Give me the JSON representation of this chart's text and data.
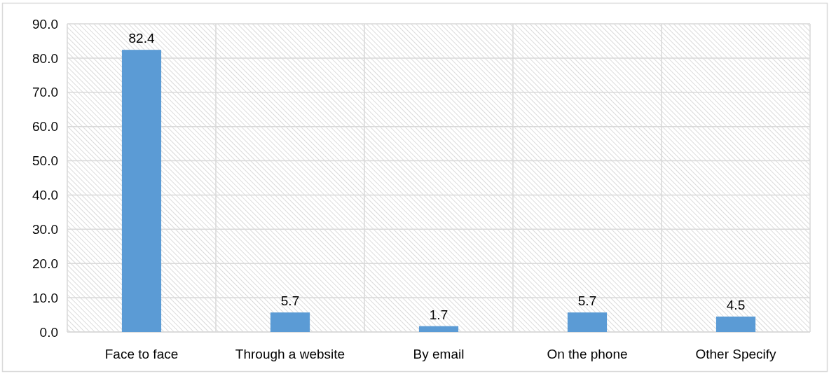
{
  "chart_data": {
    "type": "bar",
    "categories": [
      "Face to face",
      "Through a website",
      "By email",
      "On the phone",
      "Other Specify"
    ],
    "values": [
      82.4,
      5.7,
      1.7,
      5.7,
      4.5
    ],
    "color": "#5b9bd5",
    "ylim": [
      0,
      90
    ],
    "yticks": [
      {
        "value": 0,
        "label": "0.0"
      },
      {
        "value": 10,
        "label": "10.0"
      },
      {
        "value": 20,
        "label": "20.0"
      },
      {
        "value": 30,
        "label": "30.0"
      },
      {
        "value": 40,
        "label": "40.0"
      },
      {
        "value": 50,
        "label": "50.0"
      },
      {
        "value": 60,
        "label": "60.0"
      },
      {
        "value": 70,
        "label": "70.0"
      },
      {
        "value": 80,
        "label": "80.0"
      },
      {
        "value": 90,
        "label": "90.0"
      }
    ],
    "grid": true,
    "data_labels": true
  }
}
